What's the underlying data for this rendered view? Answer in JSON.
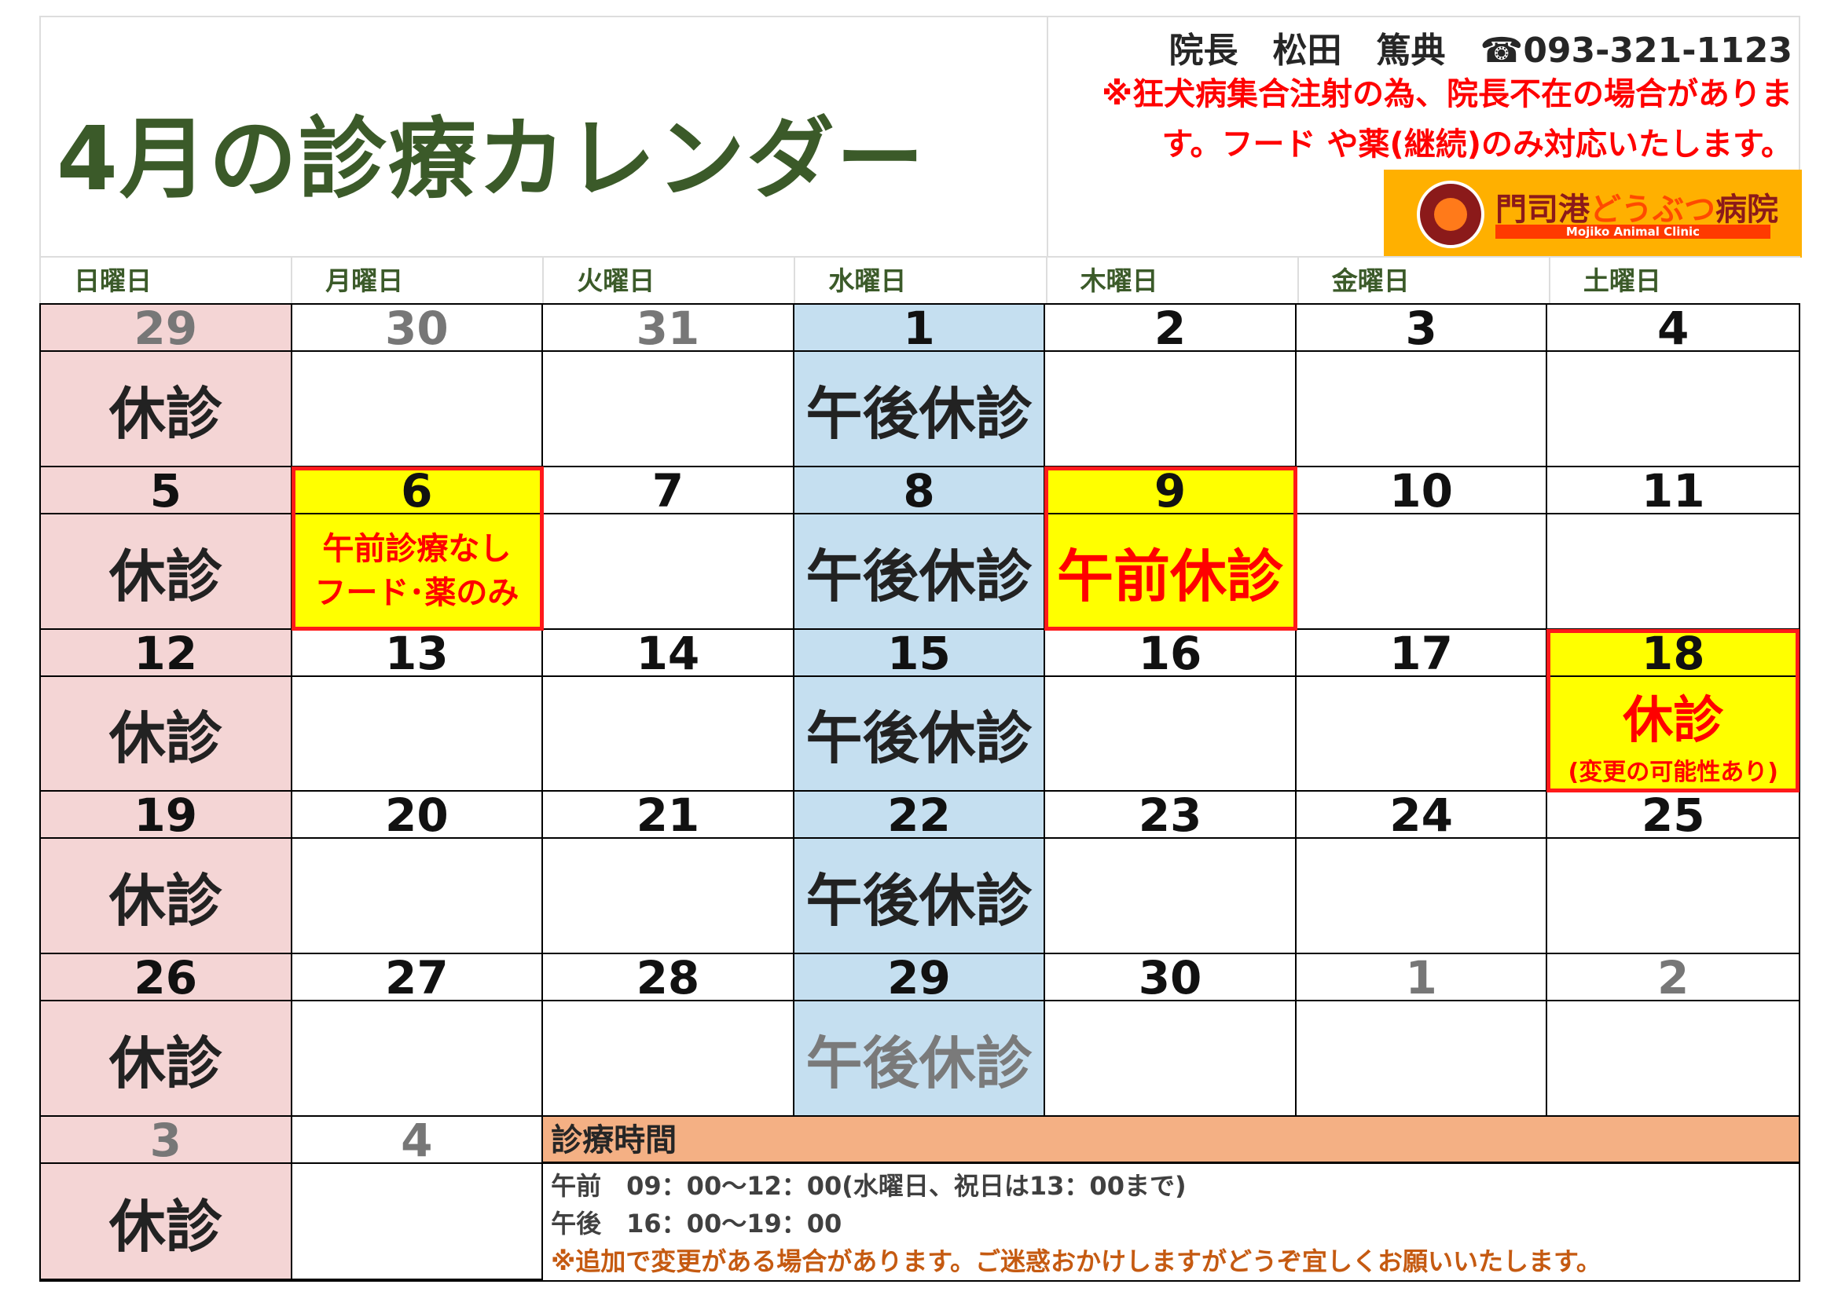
{
  "header": {
    "title": "4月の診療カレンダー",
    "director": "院長　松田　篤典　☎093-321-1123",
    "notice": "※狂犬病集合注射の為、院長不在の場合があります。フード や薬(継続)のみ対応いたします。"
  },
  "logo": {
    "name_part1": "門司港",
    "name_part2": "どうぶつ",
    "name_part3": "病院",
    "subtitle": "Mojiko Animal Clinic",
    "colors": {
      "bg": "#ffb000",
      "text": "#8b1a1a"
    }
  },
  "day_names": [
    "日曜日",
    "月曜日",
    "火曜日",
    "水曜日",
    "木曜日",
    "金曜日",
    "土曜日"
  ],
  "colors": {
    "sunday": "#f4d5d5",
    "wednesday": "#c5dff0",
    "highlight": "#ffff00",
    "alert": "#ff0000",
    "title": "#3b5a29",
    "hours_header": "#f4b084"
  },
  "calendar": {
    "weeks": [
      {
        "days": [
          {
            "date": "29",
            "muted": true,
            "note": "休診"
          },
          {
            "date": "30",
            "muted": true
          },
          {
            "date": "31",
            "muted": true
          },
          {
            "date": "1",
            "note": "午後休診"
          },
          {
            "date": "2"
          },
          {
            "date": "3"
          },
          {
            "date": "4"
          }
        ]
      },
      {
        "days": [
          {
            "date": "5",
            "note": "休診"
          },
          {
            "date": "6",
            "highlight": true,
            "note_lines": [
              "午前診療なし",
              "フード･薬のみ"
            ]
          },
          {
            "date": "7"
          },
          {
            "date": "8",
            "note": "午後休診"
          },
          {
            "date": "9",
            "highlight": true,
            "note": "午前休診"
          },
          {
            "date": "10"
          },
          {
            "date": "11"
          }
        ]
      },
      {
        "days": [
          {
            "date": "12",
            "note": "休診"
          },
          {
            "date": "13"
          },
          {
            "date": "14"
          },
          {
            "date": "15",
            "note": "午後休診"
          },
          {
            "date": "16"
          },
          {
            "date": "17"
          },
          {
            "date": "18",
            "highlight": true,
            "note": "休診",
            "subnote": "(変更の可能性あり)"
          }
        ]
      },
      {
        "days": [
          {
            "date": "19",
            "note": "休診"
          },
          {
            "date": "20"
          },
          {
            "date": "21"
          },
          {
            "date": "22",
            "note": "午後休診"
          },
          {
            "date": "23"
          },
          {
            "date": "24"
          },
          {
            "date": "25"
          }
        ]
      },
      {
        "days": [
          {
            "date": "26",
            "note": "休診"
          },
          {
            "date": "27"
          },
          {
            "date": "28"
          },
          {
            "date": "29",
            "note": "午後休診",
            "gray_note": true
          },
          {
            "date": "30"
          },
          {
            "date": "1",
            "muted": true
          },
          {
            "date": "2",
            "muted": true
          }
        ]
      },
      {
        "days": [
          {
            "date": "3",
            "muted": true,
            "note": "休診"
          },
          {
            "date": "4",
            "muted": true
          }
        ]
      }
    ]
  },
  "hours": {
    "title": "診療時間",
    "morning": "午前　09：00～12：00(水曜日、祝日は13：00まで)",
    "afternoon": "午後　16：00～19：00",
    "note": "※追加で変更がある場合があります。ご迷惑おかけしますがどうぞ宜しくお願いいたします。"
  }
}
